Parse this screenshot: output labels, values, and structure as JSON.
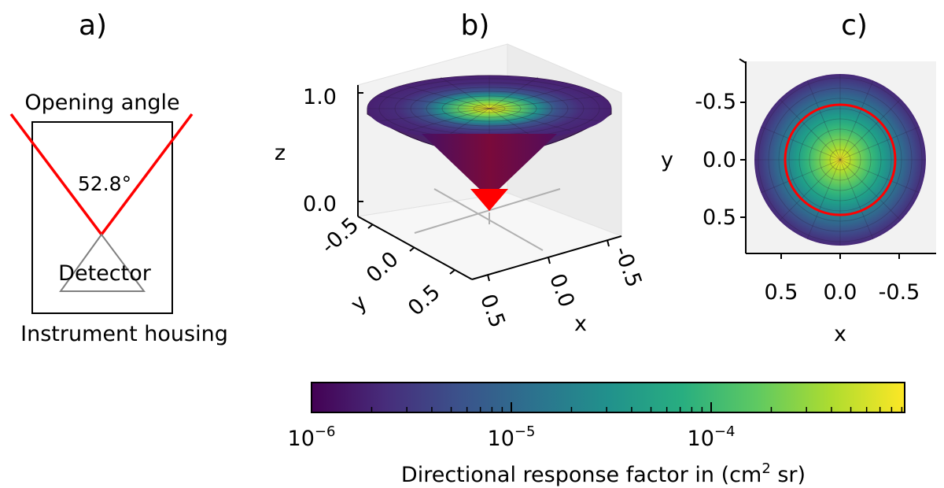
{
  "panels": {
    "a": {
      "label": "a)",
      "opening_angle_label": "Opening angle",
      "angle_value": "52.8°",
      "detector_label": "Detector",
      "housing_label": "Instrument housing"
    },
    "b": {
      "label": "b)",
      "z_axis_label": "z",
      "z_ticks": [
        "1.0",
        "0.0"
      ],
      "y_axis_label": "y",
      "y_ticks": [
        "-0.5",
        "0.0",
        "0.5"
      ],
      "x_axis_label": "x",
      "x_ticks": [
        "-0.5",
        "0.0",
        "0.5"
      ]
    },
    "c": {
      "label": "c)",
      "y_axis_label": "y",
      "y_ticks": [
        "-0.5",
        "0.0",
        "0.5"
      ],
      "x_axis_label": "x",
      "x_ticks": [
        "0.5",
        "0.0",
        "-0.5"
      ]
    }
  },
  "colorbar": {
    "label_main": "Directional response factor in (cm",
    "label_sup": "2",
    "label_end": " sr)",
    "scale": "log",
    "range": [
      "1e-6",
      "1e-3"
    ],
    "tick_base": "10",
    "ticks": [
      {
        "exp": "−6",
        "value": 1e-06
      },
      {
        "exp": "−5",
        "value": 1e-05
      },
      {
        "exp": "−4",
        "value": 0.0001
      }
    ],
    "colormap": "viridis"
  },
  "colors": {
    "cone": "#ff0000",
    "housing": "#000000",
    "detector": "#808080",
    "low": "#440154",
    "high": "#fde725"
  }
}
